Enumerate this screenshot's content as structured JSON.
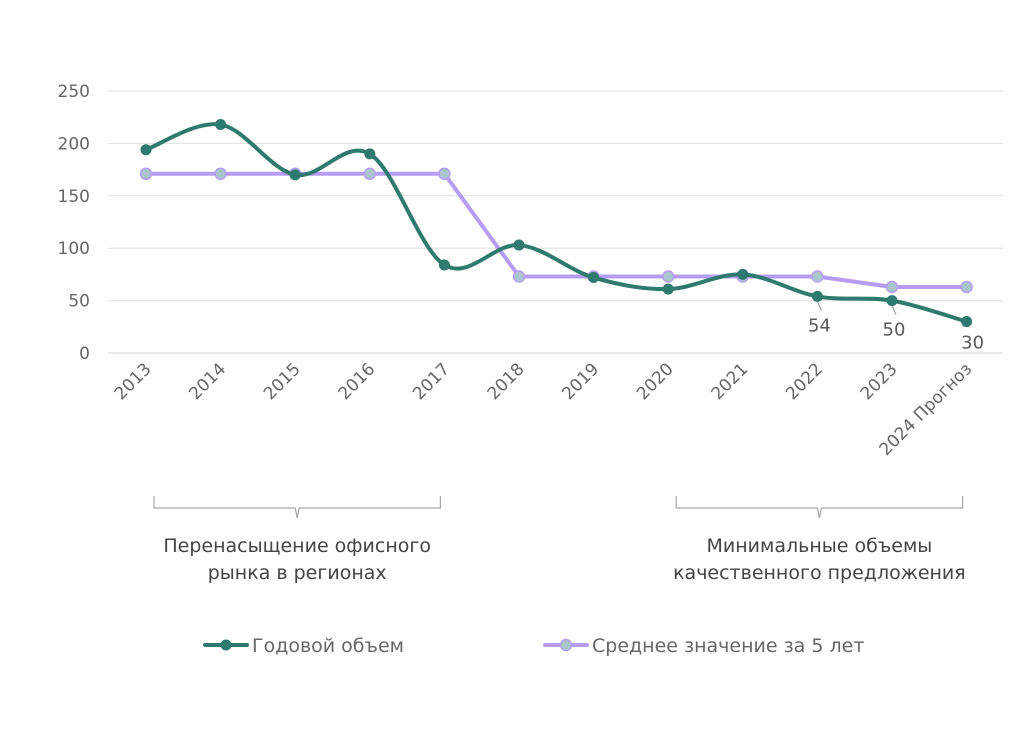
{
  "chart_data": {
    "type": "line",
    "title": "",
    "xlabel": "",
    "ylabel": "",
    "categories": [
      "2013",
      "2014",
      "2015",
      "2016",
      "2017",
      "2018",
      "2019",
      "2020",
      "2021",
      "2022",
      "2023",
      "2024 Прогноз"
    ],
    "ylim": [
      0,
      250
    ],
    "yticks": [
      0,
      50,
      100,
      150,
      200,
      250
    ],
    "grid": true,
    "legend_position": "bottom",
    "series": [
      {
        "name": "Годовой объем",
        "color": "#2e7a6e",
        "smooth": true,
        "values": [
          194,
          218,
          170,
          190,
          84,
          103,
          72,
          61,
          75,
          54,
          50,
          30
        ],
        "data_labels": [
          "",
          "",
          "",
          "",
          "",
          "",
          "",
          "",
          "",
          "54",
          "50",
          "30"
        ]
      },
      {
        "name": "Среднее значение за 5 лет",
        "color": "#b79cf5",
        "marker_color": "#a8c6cc",
        "smooth": false,
        "values": [
          171,
          171,
          171,
          171,
          171,
          73,
          73,
          73,
          73,
          73,
          63,
          63
        ]
      }
    ],
    "annotations": [
      {
        "text_lines": [
          "Перенасыщение офисного",
          "рынка в регионах"
        ],
        "from": "2013",
        "to": "2017"
      },
      {
        "text_lines": [
          "Минимальные объемы",
          "качественного предложения"
        ],
        "from": "2020",
        "to": "2024 Прогноз"
      }
    ]
  }
}
